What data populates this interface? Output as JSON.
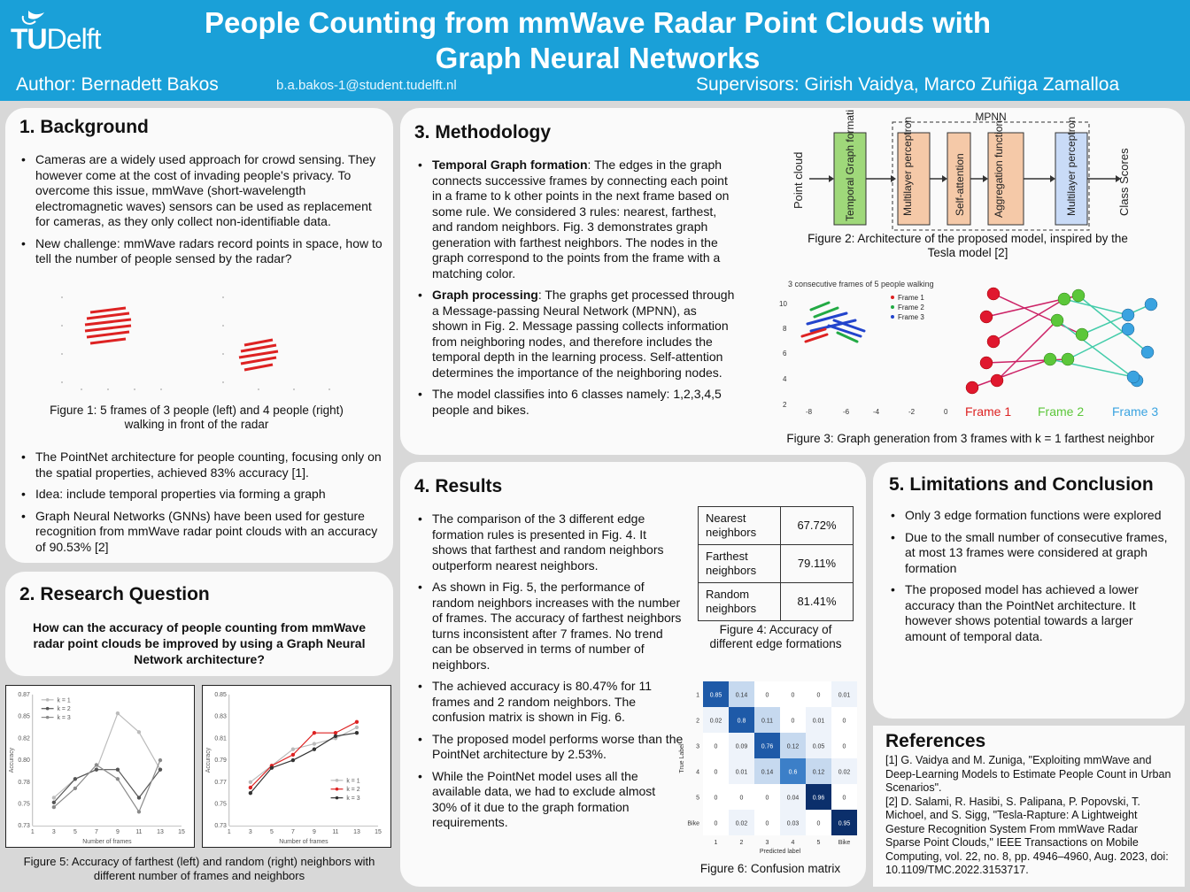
{
  "header": {
    "logo_tu": "TU",
    "logo_delft": "Delft",
    "title_line1": "People Counting from mmWave Radar Point Clouds with",
    "title_line2": "Graph Neural Networks",
    "author": "Author: Bernadett  Bakos",
    "email": "b.a.bakos-1@student.tudelft.nl",
    "supervisors": "Supervisors:  Girish  Vaidya,  Marco Zuñiga  Zamalloa"
  },
  "background": {
    "title": "1.  Background",
    "bullets_top": [
      "Cameras are a widely used approach for crowd sensing. They however come at the cost of invading people's privacy. To overcome this issue, mmWave  (short-wavelength electromagnetic waves) sensors can be used as replacement for cameras, as they only collect non-identifiable data.",
      "New challenge:  mmWave radars record points in space, how to tell the number of people sensed by the radar?"
    ],
    "figure1_caption": "Figure 1: 5 frames of 3 people (left) and 4 people (right) walking in front of the radar",
    "bullets_bottom": [
      "The PointNet  architecture for people counting, focusing only on the spatial properties, achieved 83% accuracy [1].",
      "Idea: include temporal properties via forming a graph",
      "Graph Neural Networks (GNNs) have been used for gesture recognition from mmWave radar point clouds with an accuracy of 90.53% [2]"
    ]
  },
  "research": {
    "title": "2.  Research Question",
    "question": "How can the accuracy  of people counting from mmWave radar point clouds be improved by using a Graph Neural Network architecture?"
  },
  "figure5": {
    "caption": "Figure 5: Accuracy of farthest (left) and random (right) neighbors with  different number of frames and neighbors",
    "left_xlabel": "Number of frames",
    "left_ylabel": "Accuracy",
    "right_xlabel": "Number of frames",
    "right_ylabel": "Accuracy",
    "left_legend": [
      "k = 1",
      "k = 2",
      "k = 3"
    ],
    "right_legend": [
      "k = 1",
      "k = 2",
      "k = 3"
    ]
  },
  "methodology": {
    "title": "3.  Methodology",
    "b1_head": "Temporal Graph formation",
    "b1_text": ": The edges in the graph connects successive frames by connecting each point in a frame to k other points in the next frame based on some rule. We considered 3 rules: nearest, farthest, and random neighbors. Fig. 3 demonstrates graph generation  with farthest neighbors. The nodes in the graph correspond to the points from the frame with a matching color.",
    "b2_head": "Graph processing",
    "b2_text": ": The graphs get processed through a Message-passing Neural Network (MPNN), as shown in Fig. 2. Message passing collects information from neighboring nodes, and therefore includes the temporal depth in the learning process. Self-attention determines the importance of the neighboring nodes.",
    "b3_text": "The model classifies into 6 classes namely: 1,2,3,4,5 people and bikes.",
    "arch": {
      "mpnn_label": "MPNN",
      "input": "Point cloud",
      "blocks": [
        "Temporal Graph formation",
        "Multilayer perceptron",
        "Self-attention",
        "Aggregation function",
        "Multilayer perceptron"
      ],
      "output": "Class Scores"
    },
    "figure2_caption": "Figure 2: Architecture of the proposed model, inspired by the Tesla model [2]",
    "fig3_plot_title": "3 consecutive frames of 5 people walking",
    "fig3_legend": [
      "Frame 1",
      "Frame 2",
      "Frame 3"
    ],
    "fig3_frames": [
      "Frame 1",
      "Frame 2",
      "Frame 3"
    ],
    "figure3_caption": "Figure 3: Graph generation from 3 frames with  k = 1 farthest neighbor"
  },
  "results": {
    "title": "4.  Results",
    "bullets": [
      "The comparison of the 3 different edge formation rules is presented in Fig. 4. It shows that farthest and random neighbors outperform nearest neighbors.",
      "As shown in Fig. 5, the performance of random neighbors increases with the number of frames. The accuracy of farthest neighbors  turns inconsistent after 7 frames. No trend can be observed in terms of number of neighbors.",
      "The achieved accuracy is 80.47% for 11 frames and 2 random neighbors. The confusion matrix is shown in Fig. 6.",
      "The proposed model performs worse than the PointNet  architecture by 2.53%.",
      "While the PointNet model uses all the available data, we had to exclude almost 30% of it due to the graph formation requirements."
    ],
    "table": [
      {
        "label": "Nearest neighbors",
        "value": "67.72%"
      },
      {
        "label": "Farthest neighbors",
        "value": "79.11%"
      },
      {
        "label": "Random neighbors",
        "value": "81.41%"
      }
    ],
    "figure4_caption": "Figure 4: Accuracy of different edge formations",
    "figure6_caption": "Figure 6: Confusion matrix",
    "cm_xlabel": "Predicted label",
    "cm_ylabel": "True Label",
    "cm_labels": [
      "1",
      "2",
      "3",
      "4",
      "5",
      "Bike"
    ],
    "cm_values": [
      [
        "0.85",
        "0.14",
        "0",
        "0",
        "0",
        "0.01"
      ],
      [
        "0.02",
        "0.8",
        "0.11",
        "0",
        "0.01",
        "0"
      ],
      [
        "0",
        "0.09",
        "0.76",
        "0.12",
        "0.05",
        "0"
      ],
      [
        "0",
        "0.01",
        "0.14",
        "0.6",
        "0.12",
        "0.02"
      ],
      [
        "0",
        "0",
        "0",
        "0.04",
        "0.96",
        "0"
      ],
      [
        "0",
        "0.02",
        "0",
        "0.03",
        "0",
        "0.95"
      ]
    ]
  },
  "limitations": {
    "title": "5.  Limitations  and Conclusion",
    "bullets": [
      "Only 3 edge formation functions were explored",
      "Due to the small number of consecutive frames, at most 13 frames were considered at graph formation",
      "The proposed model has achieved a lower accuracy than the PointNet architecture. It however shows potential towards a larger amount of temporal data."
    ]
  },
  "references": {
    "title": "References",
    "items": [
      "[1] G. Vaidya and M. Zuniga, \"Exploiting mmWave and Deep-Learning  Models to Estimate People Count in Urban Scenarios\".",
      "[2] D. Salami, R. Hasibi, S. Palipana, P. Popovski, T. Michoel, and S. Sigg, \"Tesla-Rapture:  A Lightweight Gesture Recognition System From mmWave Radar Sparse Point Clouds,\" IEEE Transactions  on Mobile Computing, vol. 22, no. 8, pp. 4946–4960,  Aug. 2023, doi: 10.1109/TMC.2022.3153717."
    ]
  },
  "chart_data": [
    {
      "type": "line",
      "title": "",
      "xlabel": "Number of frames",
      "ylabel": "Accuracy",
      "x": [
        3,
        5,
        7,
        9,
        11,
        13
      ],
      "ylim": [
        0.73,
        0.87
      ],
      "series": [
        {
          "name": "k = 1",
          "values": [
            0.76,
            0.78,
            0.79,
            0.85,
            0.83,
            0.79
          ]
        },
        {
          "name": "k = 2",
          "values": [
            0.755,
            0.78,
            0.79,
            0.79,
            0.76,
            0.79
          ]
        },
        {
          "name": "k = 3",
          "values": [
            0.75,
            0.77,
            0.795,
            0.78,
            0.745,
            0.8
          ]
        }
      ]
    },
    {
      "type": "line",
      "title": "",
      "xlabel": "Number of frames",
      "ylabel": "Accuracy",
      "x": [
        3,
        5,
        7,
        9,
        11,
        13
      ],
      "ylim": [
        0.73,
        0.85
      ],
      "series": [
        {
          "name": "k = 1",
          "values": [
            0.77,
            0.785,
            0.8,
            0.805,
            0.81,
            0.82
          ]
        },
        {
          "name": "k = 2",
          "values": [
            0.765,
            0.785,
            0.795,
            0.815,
            0.815,
            0.825
          ]
        },
        {
          "name": "k = 3",
          "values": [
            0.76,
            0.783,
            0.79,
            0.8,
            0.812,
            0.815
          ]
        }
      ]
    }
  ]
}
